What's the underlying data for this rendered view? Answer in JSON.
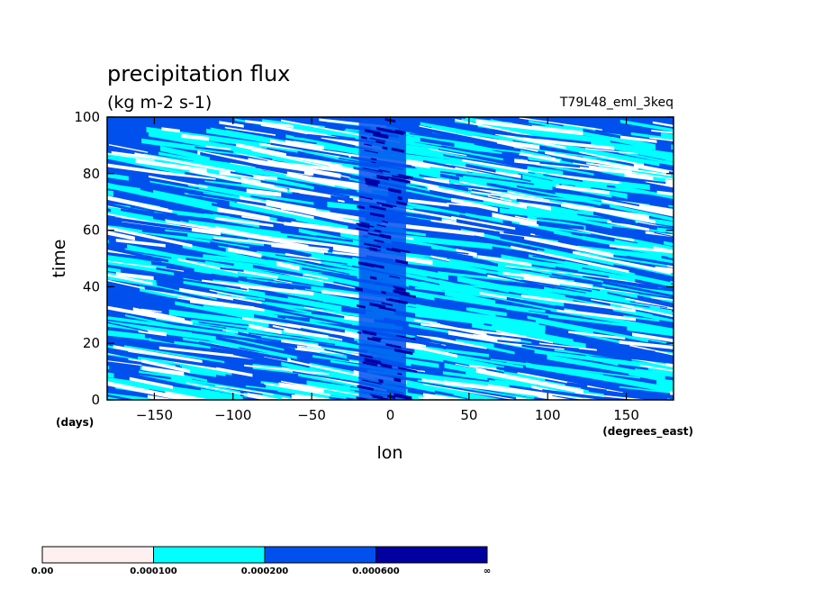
{
  "chart_data": {
    "type": "heatmap",
    "title": "precipitation flux",
    "units": "(kg m-2 s-1)",
    "experiment": "T79L48_eml_3keq",
    "xlabel": "lon",
    "xunits": "(degrees_east)",
    "ylabel": "time",
    "yunits": "(days)",
    "xlim": [
      -180,
      180
    ],
    "ylim": [
      0,
      100
    ],
    "xticks": [
      -150,
      -100,
      -50,
      0,
      50,
      100,
      150
    ],
    "yticks": [
      0,
      20,
      40,
      60,
      80,
      100
    ],
    "xtick_labels": [
      "−150",
      "−100",
      "−50",
      "0",
      "50",
      "100",
      "150"
    ],
    "ytick_labels": [
      "0",
      "20",
      "40",
      "60",
      "80",
      "100"
    ],
    "colorbar": {
      "labels": [
        "0.00",
        "0.000100",
        "0.000200",
        "0.000600",
        "∞"
      ],
      "colors": [
        "#fff0f0",
        "#00ffff",
        "#0050ee",
        "#0000a0"
      ]
    },
    "note": "Hovmoller diagram of precipitation flux; westward-propagating streaks everywhere with enhanced precipitation concentrated near 0 degrees longitude."
  }
}
